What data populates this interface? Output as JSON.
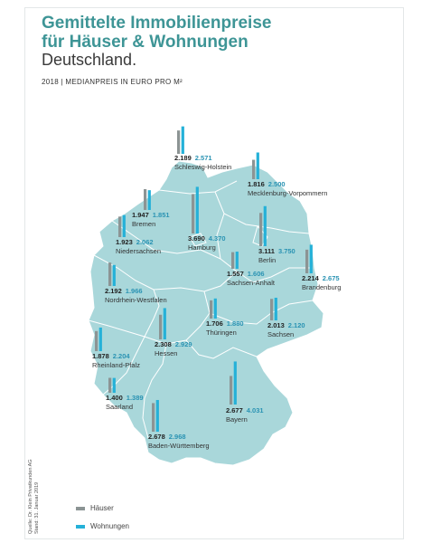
{
  "title_line1": "Gemittelte Immobilienpreise",
  "title_line2": "für Häuser & Wohnungen",
  "subtitle": "Deutschland.",
  "caption": "2018 | MEDIANPREIS IN EURO PRO M²",
  "source_line1": "Quelle: Dr. Klein Privatkunden AG",
  "source_line2": "Stand: 31. Januar 2019",
  "colors": {
    "haeuser": "#8c9494",
    "wohnungen": "#25b1d8",
    "map": "#a9d7da",
    "title": "#3e9596"
  },
  "chart_data": {
    "type": "bar",
    "title": "Gemittelte Immobilienpreise für Häuser & Wohnungen",
    "categories": [
      "Schleswig-Holstein",
      "Mecklenburg-Vorpommern",
      "Bremen",
      "Hamburg",
      "Niedersachsen",
      "Berlin",
      "Brandenburg",
      "Sachsen-Anhalt",
      "Nordrhein-Westfalen",
      "Thüringen",
      "Sachsen",
      "Hessen",
      "Rheinland-Pfalz",
      "Saarland",
      "Bayern",
      "Baden-Württemberg"
    ],
    "series": [
      {
        "name": "Häuser",
        "values": [
          2189,
          1816,
          1947,
          3690,
          1923,
          3111,
          2214,
          1557,
          2192,
          1706,
          2013,
          2308,
          1878,
          1400,
          2677,
          2678
        ]
      },
      {
        "name": "Wohnungen",
        "values": [
          2571,
          2500,
          1851,
          4370,
          2062,
          3750,
          2675,
          1606,
          1966,
          1880,
          2120,
          2929,
          2204,
          1389,
          4031,
          2968
        ]
      }
    ],
    "labels": [
      {
        "state": "Schleswig-Holstein",
        "haeuser": "2.189",
        "wohnungen": "2.571"
      },
      {
        "state": "Mecklenburg-Vorpommern",
        "haeuser": "1.816",
        "wohnungen": "2.500"
      },
      {
        "state": "Bremen",
        "haeuser": "1.947",
        "wohnungen": "1.851"
      },
      {
        "state": "Hamburg",
        "haeuser": "3.690",
        "wohnungen": "4.370"
      },
      {
        "state": "Niedersachsen",
        "haeuser": "1.923",
        "wohnungen": "2.062"
      },
      {
        "state": "Berlin",
        "haeuser": "3.111",
        "wohnungen": "3.750"
      },
      {
        "state": "Brandenburg",
        "haeuser": "2.214",
        "wohnungen": "2.675"
      },
      {
        "state": "Sachsen-Anhalt",
        "haeuser": "1.557",
        "wohnungen": "1.606"
      },
      {
        "state": "Nordrhein-Westfalen",
        "haeuser": "2.192",
        "wohnungen": "1.966"
      },
      {
        "state": "Thüringen",
        "haeuser": "1.706",
        "wohnungen": "1.880"
      },
      {
        "state": "Sachsen",
        "haeuser": "2.013",
        "wohnungen": "2.120"
      },
      {
        "state": "Hessen",
        "haeuser": "2.308",
        "wohnungen": "2.929"
      },
      {
        "state": "Rheinland-Pfalz",
        "haeuser": "1.878",
        "wohnungen": "2.204"
      },
      {
        "state": "Saarland",
        "haeuser": "1.400",
        "wohnungen": "1.389"
      },
      {
        "state": "Bayern",
        "haeuser": "2.677",
        "wohnungen": "4.031"
      },
      {
        "state": "Baden-Württemberg",
        "haeuser": "2.678",
        "wohnungen": "2.968"
      }
    ],
    "legend": [
      "Häuser",
      "Wohnungen"
    ],
    "legend_position": "bottom-left"
  }
}
